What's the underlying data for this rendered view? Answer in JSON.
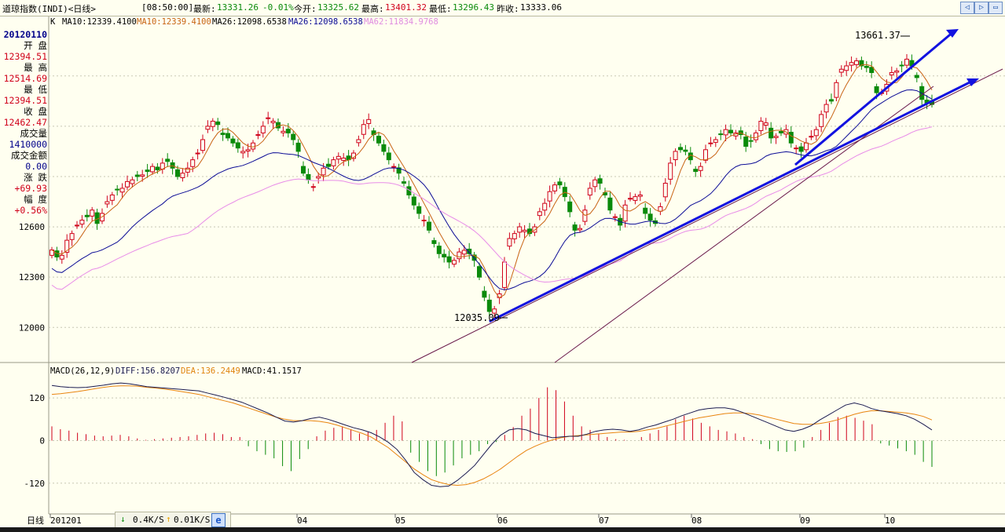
{
  "header": {
    "title": "道琼指数(INDI)<日线>",
    "time": "[08:50:00]",
    "latest_label": "最新:",
    "latest_value": "13331.26",
    "change_pct": "-0.01%",
    "open_label": "今开:",
    "open_value": "13325.62",
    "high_label": "最高:",
    "high_value": "13401.32",
    "low_label": "最低:",
    "low_value": "13296.43",
    "prev_label": "昨收:",
    "prev_value": "13333.06"
  },
  "window_buttons": {
    "left": "◁",
    "right": "▷",
    "restore": "▭"
  },
  "indicator_line": {
    "k": "K",
    "ma10_a": "MA10:12339.4100",
    "ma10_b": "MA10:12339.4100",
    "ma26_a": "MA26:12098.6538",
    "ma26_b": "MA26:12098.6538",
    "ma62": "MA62:11834.9768"
  },
  "sidebar": {
    "date": "20120110",
    "open_label": "开 盘",
    "open_value": "12394.51",
    "high_label": "最 高",
    "high_value": "12514.69",
    "low_label": "最 低",
    "low_value": "12394.51",
    "close_label": "收 盘",
    "close_value": "12462.47",
    "volume_label": "成交量",
    "volume_value": "1410000",
    "amount_label": "成交金额",
    "amount_value": "0.00",
    "change_label": "涨 跌",
    "change_value": "+69.93",
    "range_label": "幅 度",
    "range_value": "+0.56%"
  },
  "macd_header": {
    "title": "MACD(26,12,9)",
    "diff": "DIFF:156.8207",
    "dea": "DEA:136.2449",
    "macd": "MACD:41.1517"
  },
  "annotations": {
    "high_label": "13661.37",
    "low_label": "12035.09"
  },
  "status": {
    "down_rate": "0.4K/S",
    "up_rate": "0.01K/S",
    "down_icon": "arrow-down-icon",
    "up_icon": "arrow-up-icon",
    "app_icon": "ie-icon"
  },
  "footer_label": "日线",
  "colors": {
    "up": "#d0021b",
    "down": "#0a8a0a",
    "ma10": "#c86414",
    "ma26": "#0c0c96",
    "ma62": "#e88ce8",
    "trend": "#1212e0",
    "diff": "#1a1a50",
    "dea": "#e88410",
    "background": "#fffff0"
  },
  "chart_data": [
    {
      "type": "candlestick",
      "title": "道琼指数(INDI)<日线>",
      "x_tick_labels": [
        "201201",
        "04",
        "05",
        "06",
        "07",
        "08",
        "09",
        "10"
      ],
      "y_ticks": [
        12000,
        12300,
        12600
      ],
      "ylim": [
        11800,
        13850
      ],
      "high_annotation": 13661.37,
      "low_annotation": 12035.09,
      "series": [
        {
          "name": "MA10",
          "value": 12339.41
        },
        {
          "name": "MA26",
          "value": 12098.6538
        },
        {
          "name": "MA62",
          "value": 11834.9768
        }
      ],
      "candle_closes": [
        12462,
        12420,
        12430,
        12520,
        12560,
        12610,
        12640,
        12660,
        12700,
        12620,
        12680,
        12750,
        12790,
        12820,
        12830,
        12870,
        12880,
        12900,
        12910,
        12930,
        12960,
        12940,
        12980,
        12990,
        12950,
        12900,
        12920,
        12950,
        13000,
        13040,
        13120,
        13200,
        13230,
        13210,
        13150,
        13130,
        13100,
        13070,
        13050,
        13060,
        13100,
        13150,
        13200,
        13250,
        13230,
        13190,
        13170,
        13160,
        13120,
        13050,
        12920,
        12880,
        12840,
        12900,
        12950,
        12960,
        13000,
        13020,
        13010,
        13000,
        13040,
        13120,
        13210,
        13240,
        13150,
        13100,
        13050,
        13000,
        12960,
        12920,
        12860,
        12790,
        12730,
        12680,
        12640,
        12580,
        12500,
        12440,
        12420,
        12390,
        12400,
        12450,
        12460,
        12440,
        12400,
        12300,
        12180,
        12095,
        12110,
        12200,
        12390,
        12530,
        12560,
        12600,
        12580,
        12560,
        12600,
        12690,
        12740,
        12810,
        12850,
        12850,
        12780,
        12690,
        12580,
        12590,
        12700,
        12830,
        12880,
        12860,
        12790,
        12700,
        12660,
        12610,
        12730,
        12770,
        12780,
        12790,
        12680,
        12640,
        12620,
        12720,
        12860,
        12980,
        13050,
        13060,
        13050,
        13000,
        12930,
        12960,
        13060,
        13100,
        13120,
        13150,
        13180,
        13160,
        13160,
        13150,
        13080,
        13110,
        13160,
        13230,
        13220,
        13130,
        13140,
        13160,
        13180,
        13100,
        13070,
        13050,
        13100,
        13140,
        13180,
        13270,
        13330,
        13350,
        13460,
        13540,
        13560,
        13580,
        13590,
        13560,
        13550,
        13520,
        13400,
        13400,
        13450,
        13520,
        13530,
        13560,
        13600,
        13560,
        13490,
        13360,
        13340,
        13330
      ]
    },
    {
      "type": "macd",
      "title": "MACD(26,12,9)",
      "y_ticks": [
        -120,
        0,
        120
      ],
      "ylim": [
        -200,
        180
      ],
      "diff_last": 156.8207,
      "dea_last": 136.2449,
      "macd_last": 41.1517,
      "diff": [
        155,
        152,
        150,
        149,
        150,
        153,
        156,
        160,
        162,
        160,
        156,
        152,
        150,
        148,
        146,
        144,
        142,
        140,
        134,
        128,
        122,
        115,
        108,
        98,
        88,
        78,
        66,
        55,
        52,
        56,
        62,
        66,
        60,
        52,
        44,
        36,
        30,
        22,
        10,
        -5,
        -25,
        -55,
        -90,
        -110,
        -126,
        -130,
        -128,
        -112,
        -92,
        -70,
        -40,
        -10,
        15,
        30,
        34,
        30,
        20,
        14,
        8,
        10,
        12,
        12,
        18,
        26,
        30,
        32,
        30,
        26,
        30,
        38,
        44,
        52,
        60,
        70,
        78,
        86,
        90,
        92,
        92,
        88,
        80,
        70,
        60,
        50,
        40,
        30,
        26,
        32,
        42,
        58,
        72,
        86,
        100,
        106,
        100,
        90,
        84,
        80,
        76,
        70,
        60,
        46,
        30
      ],
      "dea": [
        130,
        132,
        135,
        138,
        142,
        146,
        150,
        153,
        154,
        154,
        153,
        150,
        148,
        145,
        142,
        138,
        134,
        130,
        124,
        118,
        112,
        106,
        98,
        90,
        82,
        74,
        66,
        60,
        56,
        56,
        56,
        54,
        50,
        44,
        36,
        28,
        20,
        10,
        -5,
        -20,
        -40,
        -60,
        -80,
        -96,
        -110,
        -118,
        -124,
        -126,
        -124,
        -118,
        -108,
        -95,
        -80,
        -62,
        -44,
        -28,
        -16,
        -6,
        2,
        8,
        12,
        14,
        16,
        18,
        20,
        22,
        24,
        24,
        26,
        30,
        34,
        40,
        46,
        52,
        58,
        64,
        68,
        72,
        76,
        78,
        78,
        76,
        72,
        66,
        60,
        54,
        48,
        46,
        46,
        48,
        52,
        58,
        66,
        74,
        80,
        84,
        84,
        82,
        80,
        78,
        74,
        68,
        58
      ],
      "macd_bars": [
        40,
        32,
        28,
        22,
        18,
        14,
        12,
        14,
        16,
        12,
        6,
        2,
        4,
        6,
        8,
        10,
        12,
        16,
        20,
        22,
        18,
        10,
        10,
        -16,
        -30,
        -40,
        -50,
        -72,
        -86,
        -52,
        -24,
        12,
        28,
        36,
        40,
        32,
        20,
        24,
        30,
        50,
        70,
        54,
        -34,
        -60,
        -86,
        -100,
        -90,
        -70,
        -50,
        -40,
        -30,
        -10,
        -4,
        16,
        38,
        70,
        90,
        120,
        150,
        142,
        110,
        70,
        40,
        30,
        20,
        10,
        4,
        2,
        0,
        10,
        20,
        30,
        40,
        60,
        70,
        62,
        50,
        40,
        30,
        26,
        20,
        10,
        4,
        -10,
        -24,
        -30,
        -32,
        -30,
        -20,
        10,
        30,
        50,
        66,
        70,
        64,
        56,
        46,
        -8,
        -14,
        -22,
        -30,
        -40,
        -60,
        -74
      ]
    }
  ]
}
